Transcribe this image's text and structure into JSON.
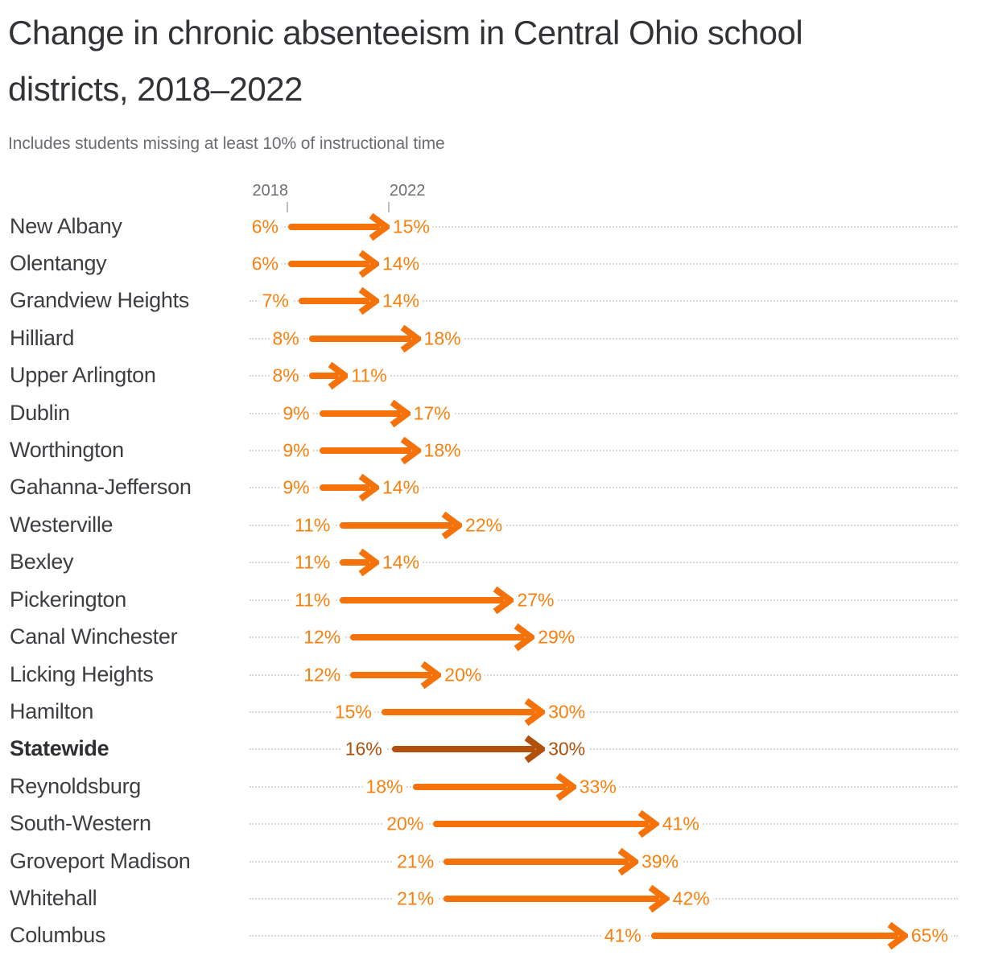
{
  "chart_data": {
    "type": "arrow",
    "title": "Change in chronic absenteeism in Central Ohio school districts, 2018–2022",
    "subtitle": "Includes students missing at least 10% of instructional time",
    "unit": "%",
    "x_axis": {
      "start_year": "2018",
      "end_year": "2022"
    },
    "x_range_percent": [
      6,
      65
    ],
    "grid": "dotted-row-leaders",
    "legend_position": "top-ticks",
    "rows": [
      {
        "district": "New Albany",
        "y2018": 6,
        "y2022": 15,
        "emphasis": false
      },
      {
        "district": "Olentangy",
        "y2018": 6,
        "y2022": 14,
        "emphasis": false
      },
      {
        "district": "Grandview Heights",
        "y2018": 7,
        "y2022": 14,
        "emphasis": false
      },
      {
        "district": "Hilliard",
        "y2018": 8,
        "y2022": 18,
        "emphasis": false
      },
      {
        "district": "Upper Arlington",
        "y2018": 8,
        "y2022": 11,
        "emphasis": false
      },
      {
        "district": "Dublin",
        "y2018": 9,
        "y2022": 17,
        "emphasis": false
      },
      {
        "district": "Worthington",
        "y2018": 9,
        "y2022": 18,
        "emphasis": false
      },
      {
        "district": "Gahanna-Jefferson",
        "y2018": 9,
        "y2022": 14,
        "emphasis": false
      },
      {
        "district": "Westerville",
        "y2018": 11,
        "y2022": 22,
        "emphasis": false
      },
      {
        "district": "Bexley",
        "y2018": 11,
        "y2022": 14,
        "emphasis": false
      },
      {
        "district": "Pickerington",
        "y2018": 11,
        "y2022": 27,
        "emphasis": false
      },
      {
        "district": "Canal Winchester",
        "y2018": 12,
        "y2022": 29,
        "emphasis": false
      },
      {
        "district": "Licking Heights",
        "y2018": 12,
        "y2022": 20,
        "emphasis": false
      },
      {
        "district": "Hamilton",
        "y2018": 15,
        "y2022": 30,
        "emphasis": false
      },
      {
        "district": "Statewide",
        "y2018": 16,
        "y2022": 30,
        "emphasis": true
      },
      {
        "district": "Reynoldsburg",
        "y2018": 18,
        "y2022": 33,
        "emphasis": false
      },
      {
        "district": "South-Western",
        "y2018": 20,
        "y2022": 41,
        "emphasis": false
      },
      {
        "district": "Groveport Madison",
        "y2018": 21,
        "y2022": 39,
        "emphasis": false
      },
      {
        "district": "Whitehall",
        "y2018": 21,
        "y2022": 42,
        "emphasis": false
      },
      {
        "district": "Columbus",
        "y2018": 41,
        "y2022": 65,
        "emphasis": false
      }
    ]
  },
  "colors": {
    "arrow": "#f57109",
    "value_label": "#f8800e",
    "emphasis": "#b0500a",
    "district_label": "#3d3d42",
    "title": "#323237",
    "subtitle": "#6b6b73",
    "axis_label": "#6e6e76",
    "tick": "#bdbdc3",
    "leader_dots": "#d8d8dc",
    "background": "#ffffff"
  }
}
